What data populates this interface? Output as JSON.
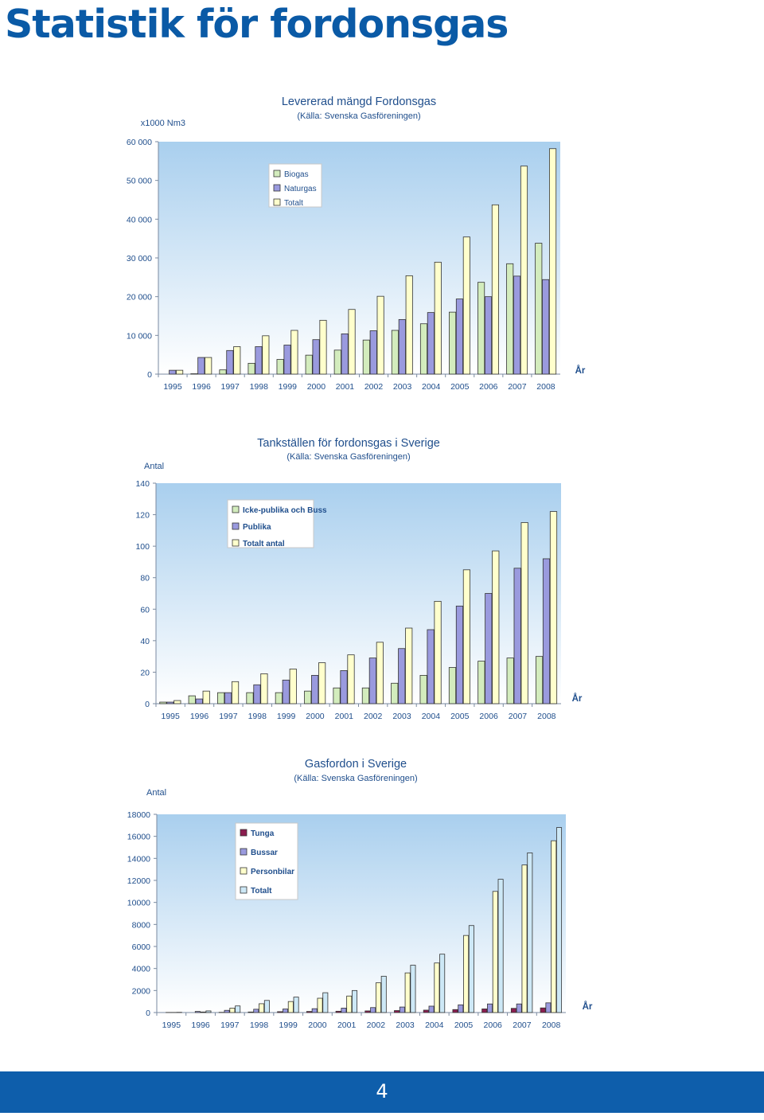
{
  "page": {
    "title": "Statistik för fordonsgas",
    "page_number": "4"
  },
  "colors": {
    "biogas": "#d3ecbd",
    "naturgas": "#9a9ade",
    "totalt": "#ffffcc",
    "tunga": "#8b1d4f",
    "bussar": "#9a9ade",
    "personbilar": "#ffffcc",
    "totalt_fordon": "#cde8f6",
    "footer": "#0e5eab"
  },
  "chart_data": [
    {
      "type": "bar",
      "title": "Levererad mängd Fordonsgas",
      "subtitle": "(Källa: Svenska Gasföreningen)",
      "ylabel": "x1000 Nm3",
      "xlabel": "År",
      "ylim": [
        0,
        60000
      ],
      "yticks": [
        "0",
        "10 000",
        "20 000",
        "30 000",
        "40 000",
        "50 000",
        "60 000"
      ],
      "categories": [
        "1995",
        "1996",
        "1997",
        "1998",
        "1999",
        "2000",
        "2001",
        "2002",
        "2003",
        "2004",
        "2005",
        "2006",
        "2007",
        "2008"
      ],
      "legend_position": "top-left",
      "series": [
        {
          "name": "Biogas",
          "color": "#d3ecbd",
          "values": [
            0,
            100,
            1100,
            2800,
            3800,
            4900,
            6200,
            8800,
            11300,
            13000,
            16000,
            23700,
            28500,
            33800
          ]
        },
        {
          "name": "Naturgas",
          "color": "#9a9ade",
          "values": [
            1000,
            4300,
            6100,
            7100,
            7500,
            8900,
            10400,
            11200,
            14100,
            15900,
            19400,
            20000,
            25300,
            24400
          ]
        },
        {
          "name": "Totalt",
          "color": "#ffffcc",
          "values": [
            1000,
            4300,
            7100,
            9900,
            11300,
            13900,
            16700,
            20100,
            25400,
            28900,
            35400,
            43700,
            53700,
            58200
          ]
        }
      ]
    },
    {
      "type": "bar",
      "title": "Tankställen för fordonsgas i Sverige",
      "subtitle": "(Källa: Svenska Gasföreningen)",
      "ylabel": "Antal",
      "xlabel": "År",
      "ylim": [
        0,
        140
      ],
      "yticks": [
        "0",
        "20",
        "40",
        "60",
        "80",
        "100",
        "120",
        "140"
      ],
      "categories": [
        "1995",
        "1996",
        "1997",
        "1998",
        "1999",
        "2000",
        "2001",
        "2002",
        "2003",
        "2004",
        "2005",
        "2006",
        "2007",
        "2008"
      ],
      "legend_position": "top-left",
      "series": [
        {
          "name": "Icke-publika och Buss",
          "color": "#d3ecbd",
          "values": [
            1,
            5,
            7,
            7,
            7,
            8,
            10,
            10,
            13,
            18,
            23,
            27,
            29,
            30
          ]
        },
        {
          "name": "Publika",
          "color": "#9a9ade",
          "values": [
            1,
            3,
            7,
            12,
            15,
            18,
            21,
            29,
            35,
            47,
            62,
            70,
            86,
            92
          ]
        },
        {
          "name": "Totalt antal",
          "color": "#ffffcc",
          "values": [
            2,
            8,
            14,
            19,
            22,
            26,
            31,
            39,
            48,
            65,
            85,
            97,
            115,
            122
          ]
        }
      ]
    },
    {
      "type": "bar",
      "title": "Gasfordon i Sverige",
      "subtitle": "(Källa: Svenska Gasföreningen)",
      "ylabel": "Antal",
      "xlabel": "År",
      "ylim": [
        0,
        18000
      ],
      "yticks": [
        "0",
        "2000",
        "4000",
        "6000",
        "8000",
        "10000",
        "12000",
        "14000",
        "16000",
        "18000"
      ],
      "categories": [
        "1995",
        "1996",
        "1997",
        "1998",
        "1999",
        "2000",
        "2001",
        "2002",
        "2003",
        "2004",
        "2005",
        "2006",
        "2007",
        "2008"
      ],
      "legend_position": "top-left",
      "series": [
        {
          "name": "Tunga",
          "color": "#8b1d4f",
          "values": [
            0,
            0,
            20,
            50,
            80,
            100,
            120,
            150,
            180,
            220,
            270,
            330,
            380,
            420
          ]
        },
        {
          "name": "Bussar",
          "color": "#9a9ade",
          "values": [
            10,
            100,
            200,
            300,
            320,
            350,
            400,
            450,
            500,
            580,
            700,
            780,
            780,
            880
          ]
        },
        {
          "name": "Personbilar",
          "color": "#ffffcc",
          "values": [
            10,
            50,
            400,
            800,
            1000,
            1300,
            1500,
            2700,
            3600,
            4500,
            7000,
            11000,
            13400,
            15600
          ]
        },
        {
          "name": "Totalt",
          "color": "#cde8f6",
          "values": [
            20,
            150,
            600,
            1100,
            1400,
            1800,
            2000,
            3300,
            4300,
            5300,
            7900,
            12100,
            14500,
            16800
          ]
        }
      ]
    }
  ]
}
